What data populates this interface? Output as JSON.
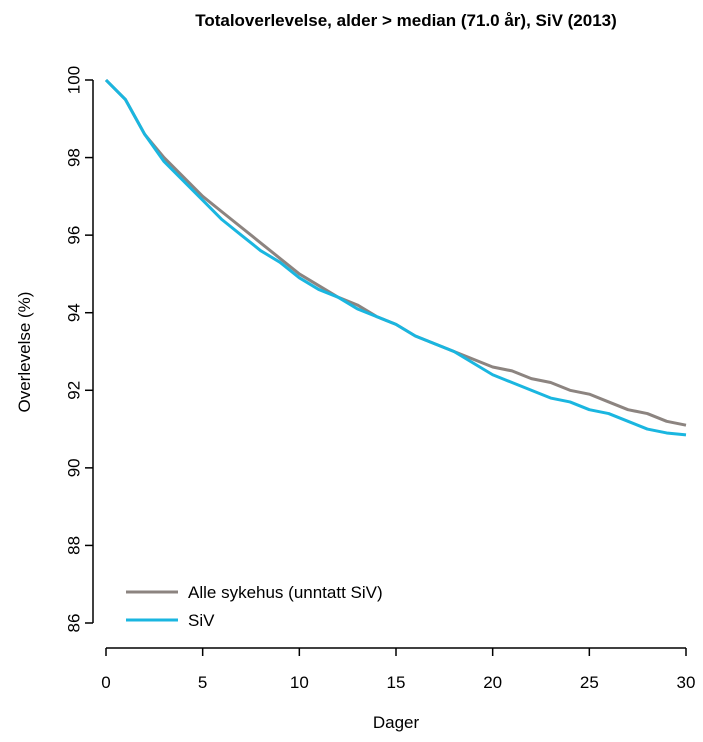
{
  "chart_data": {
    "type": "line",
    "title": "Totaloverlevelse, alder > median (71.0 år), SiV (2013)",
    "x_label": "Dager",
    "y_label": "Overlevelse (%)",
    "x": [
      0,
      1,
      2,
      3,
      4,
      5,
      6,
      7,
      8,
      9,
      10,
      11,
      12,
      13,
      14,
      15,
      16,
      17,
      18,
      19,
      20,
      21,
      22,
      23,
      24,
      25,
      26,
      27,
      28,
      29,
      30
    ],
    "series": [
      {
        "name": "Alle sykehus (unntatt SiV)",
        "color": "#8c8480",
        "values": [
          100,
          99.5,
          98.6,
          98.0,
          97.5,
          97.0,
          96.6,
          96.2,
          95.8,
          95.4,
          95.0,
          94.7,
          94.4,
          94.2,
          93.9,
          93.7,
          93.4,
          93.2,
          93.0,
          92.8,
          92.6,
          92.5,
          92.3,
          92.2,
          92.0,
          91.9,
          91.7,
          91.5,
          91.4,
          91.2,
          91.1
        ]
      },
      {
        "name": "SiV",
        "color": "#1ab6e0",
        "values": [
          100,
          99.5,
          98.6,
          97.9,
          97.4,
          96.9,
          96.4,
          96.0,
          95.6,
          95.3,
          94.9,
          94.6,
          94.4,
          94.1,
          93.9,
          93.7,
          93.4,
          93.2,
          93.0,
          92.7,
          92.4,
          92.2,
          92.0,
          91.8,
          91.7,
          91.5,
          91.4,
          91.2,
          91.0,
          90.9,
          90.85
        ]
      }
    ],
    "xlim": [
      0,
      30
    ],
    "xticks": [
      0,
      5,
      10,
      15,
      20,
      25,
      30
    ],
    "ylim": [
      86,
      100
    ],
    "yticks": [
      86,
      88,
      90,
      92,
      94,
      96,
      98,
      100
    ],
    "legend": "bottom-left"
  }
}
